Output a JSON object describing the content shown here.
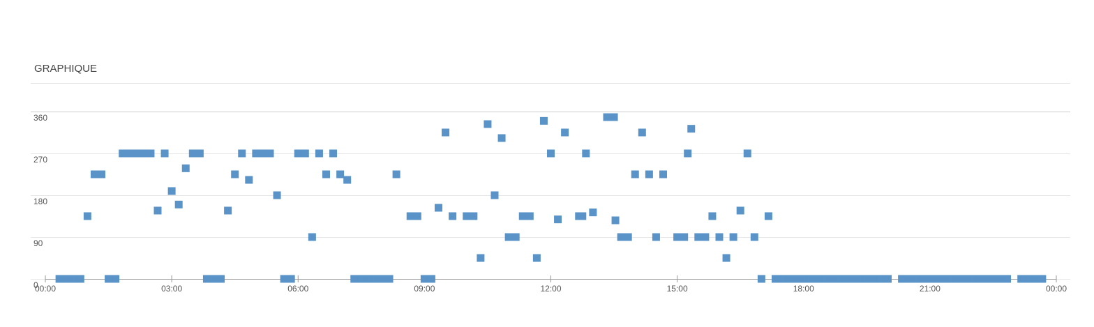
{
  "chart_data": {
    "type": "scatter",
    "title": "GRAPHIQUE",
    "color": "#5a93c8",
    "grid": true,
    "x": [
      20,
      30,
      40,
      50,
      60,
      70,
      80,
      90,
      100,
      110,
      120,
      130,
      140,
      150,
      160,
      170,
      180,
      190,
      200,
      210,
      220,
      230,
      240,
      250,
      260,
      270,
      280,
      290,
      300,
      310,
      320,
      330,
      340,
      350,
      360,
      370,
      380,
      390,
      400,
      410,
      420,
      430,
      440,
      450,
      460,
      470,
      480,
      490,
      500,
      520,
      530,
      540,
      550,
      560,
      570,
      580,
      600,
      610,
      620,
      630,
      640,
      650,
      660,
      670,
      680,
      690,
      700,
      710,
      720,
      730,
      740,
      760,
      765,
      770,
      780,
      800,
      810,
      812,
      820,
      830,
      840,
      850,
      860,
      870,
      880,
      900,
      910,
      915,
      920,
      930,
      940,
      950,
      960,
      970,
      980,
      990,
      1000,
      1010,
      1020,
      1030,
      1040,
      1050,
      1060,
      1070,
      1080,
      1090,
      1100,
      1110,
      1120,
      1130,
      1140,
      1150,
      1160,
      1170,
      1180,
      1190,
      1200,
      1220,
      1230,
      1240,
      1250,
      1260,
      1270,
      1280,
      1290,
      1300,
      1310,
      1320,
      1330,
      1340,
      1350,
      1360,
      1370,
      1390,
      1400,
      1410,
      1420
    ],
    "values": [
      0,
      0,
      0,
      0,
      135,
      225,
      225,
      0,
      0,
      270,
      270,
      270,
      270,
      270,
      147,
      270,
      189,
      160,
      238,
      270,
      270,
      0,
      0,
      0,
      147,
      225,
      270,
      213,
      270,
      270,
      270,
      180,
      0,
      0,
      270,
      270,
      90,
      270,
      225,
      270,
      225,
      213,
      0,
      0,
      0,
      0,
      0,
      0,
      225,
      135,
      135,
      0,
      0,
      153,
      315,
      135,
      135,
      135,
      45,
      333,
      180,
      303,
      90,
      90,
      135,
      135,
      45,
      340,
      270,
      128,
      315,
      135,
      135,
      270,
      143,
      348,
      348,
      126,
      90,
      90,
      225,
      315,
      225,
      90,
      225,
      90,
      90,
      270,
      323,
      90,
      90,
      135,
      90,
      45,
      90,
      147,
      270,
      90,
      0,
      135,
      0,
      0,
      0,
      0,
      0,
      0,
      0,
      0,
      0,
      0,
      0,
      0,
      0,
      0,
      0,
      0,
      0,
      0,
      0,
      0,
      0,
      0,
      0,
      0,
      0,
      0,
      0,
      0,
      0,
      0,
      0,
      0,
      0,
      0,
      0,
      0,
      0
    ],
    "xlim": [
      0,
      1440
    ],
    "xticks": [
      {
        "value": 0,
        "label": "00:00"
      },
      {
        "value": 180,
        "label": "03:00"
      },
      {
        "value": 360,
        "label": "06:00"
      },
      {
        "value": 540,
        "label": "09:00"
      },
      {
        "value": 720,
        "label": "12:00"
      },
      {
        "value": 900,
        "label": "15:00"
      },
      {
        "value": 1080,
        "label": "18:00"
      },
      {
        "value": 1260,
        "label": "21:00"
      },
      {
        "value": 1440,
        "label": "00:00"
      }
    ],
    "ylim": [
      0,
      360
    ],
    "yticks": [
      0,
      90,
      180,
      270,
      360
    ]
  }
}
